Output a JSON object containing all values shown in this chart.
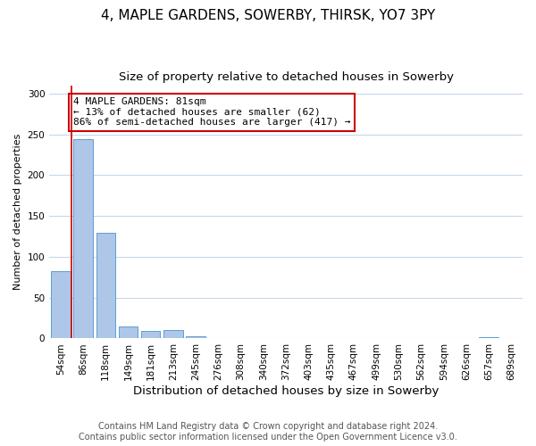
{
  "title": "4, MAPLE GARDENS, SOWERBY, THIRSK, YO7 3PY",
  "subtitle": "Size of property relative to detached houses in Sowerby",
  "xlabel": "Distribution of detached houses by size in Sowerby",
  "ylabel": "Number of detached properties",
  "bar_labels": [
    "54sqm",
    "86sqm",
    "118sqm",
    "149sqm",
    "181sqm",
    "213sqm",
    "245sqm",
    "276sqm",
    "308sqm",
    "340sqm",
    "372sqm",
    "403sqm",
    "435sqm",
    "467sqm",
    "499sqm",
    "530sqm",
    "562sqm",
    "594sqm",
    "626sqm",
    "657sqm",
    "689sqm"
  ],
  "bar_values": [
    82,
    244,
    129,
    15,
    9,
    10,
    3,
    0,
    0,
    0,
    0,
    1,
    0,
    0,
    0,
    0,
    0,
    0,
    0,
    2,
    0
  ],
  "bar_color": "#aec6e8",
  "bar_edge_color": "#5a9fd4",
  "highlight_line_color": "#cc0000",
  "ylim": [
    0,
    310
  ],
  "yticks": [
    0,
    50,
    100,
    150,
    200,
    250,
    300
  ],
  "annotation_text": "4 MAPLE GARDENS: 81sqm\n← 13% of detached houses are smaller (62)\n86% of semi-detached houses are larger (417) →",
  "annotation_box_color": "#ffffff",
  "annotation_box_edge": "#cc0000",
  "footer_line1": "Contains HM Land Registry data © Crown copyright and database right 2024.",
  "footer_line2": "Contains public sector information licensed under the Open Government Licence v3.0.",
  "background_color": "#ffffff",
  "grid_color": "#c8d8ea",
  "title_fontsize": 11,
  "subtitle_fontsize": 9.5,
  "xlabel_fontsize": 9.5,
  "ylabel_fontsize": 8,
  "tick_fontsize": 7.5,
  "annotation_fontsize": 8,
  "footer_fontsize": 7
}
